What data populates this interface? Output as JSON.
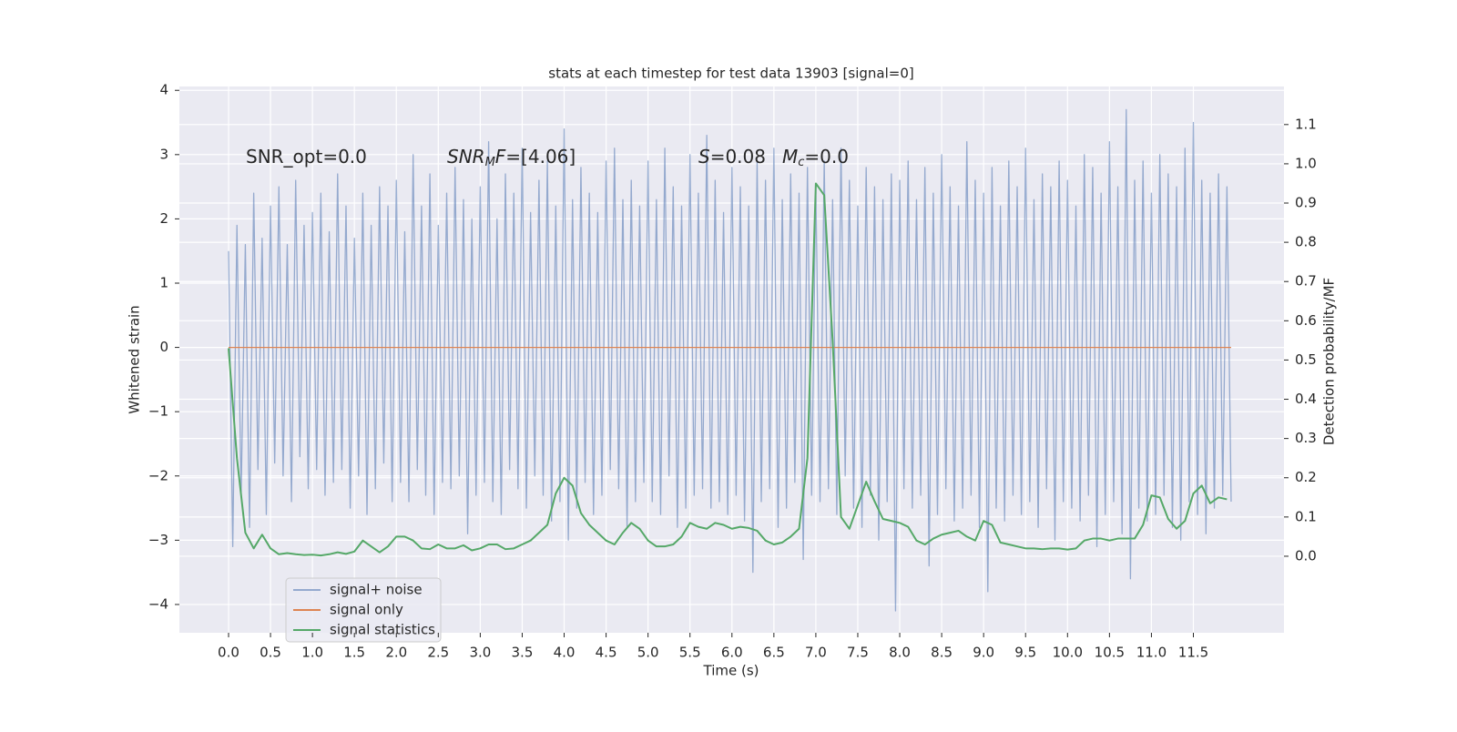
{
  "chart_data": {
    "type": "line",
    "title": "stats at each timestep for test data 13903 [signal=0]",
    "xlabel": "Time (s)",
    "ylabel": "Whitened strain",
    "y2label": "Detection probability/MF",
    "annotations": [
      [
        "SNR_opt=0.0"
      ],
      [
        "SNR",
        "M",
        "F",
        "=[4.06]"
      ],
      [
        "S",
        "=0.08"
      ],
      [
        "M",
        "c",
        "=0.0"
      ]
    ],
    "xlim": [
      -0.586,
      12.58
    ],
    "ylim": [
      -4.44,
      4.06
    ],
    "y2lim": [
      -0.195,
      1.197
    ],
    "xticks": [
      {
        "value": 0,
        "label": "0.0"
      },
      {
        "value": 0.5,
        "label": "0.5"
      },
      {
        "value": 1,
        "label": "1.0"
      },
      {
        "value": 1.5,
        "label": "1.5"
      },
      {
        "value": 2,
        "label": "2.0"
      },
      {
        "value": 2.5,
        "label": "2.5"
      },
      {
        "value": 3,
        "label": "3.0"
      },
      {
        "value": 3.5,
        "label": "3.5"
      },
      {
        "value": 4,
        "label": "4.0"
      },
      {
        "value": 4.5,
        "label": "4.5"
      },
      {
        "value": 5,
        "label": "5.0"
      },
      {
        "value": 5.5,
        "label": "5.5"
      },
      {
        "value": 6,
        "label": "6.0"
      },
      {
        "value": 6.5,
        "label": "6.5"
      },
      {
        "value": 7,
        "label": "7.0"
      },
      {
        "value": 7.5,
        "label": "7.5"
      },
      {
        "value": 8,
        "label": "8.0"
      },
      {
        "value": 8.5,
        "label": "8.5"
      },
      {
        "value": 9,
        "label": "9.0"
      },
      {
        "value": 9.5,
        "label": "9.5"
      },
      {
        "value": 10,
        "label": "10.0"
      },
      {
        "value": 10.5,
        "label": "10.5"
      },
      {
        "value": 11,
        "label": "11.0"
      },
      {
        "value": 11.5,
        "label": "11.5"
      }
    ],
    "yticks": [
      4,
      3,
      2,
      1,
      0,
      {
        "value": -1,
        "label": "−1"
      },
      {
        "value": -2,
        "label": "−2"
      },
      {
        "value": -3,
        "label": "−3"
      },
      {
        "value": -4,
        "label": "−4"
      }
    ],
    "y2ticks": [
      {
        "value": 0,
        "label": "0.0"
      },
      {
        "value": 0.1,
        "label": "0.1"
      },
      {
        "value": 0.2,
        "label": "0.2"
      },
      {
        "value": 0.3,
        "label": "0.3"
      },
      {
        "value": 0.4,
        "label": "0.4"
      },
      {
        "value": 0.5,
        "label": "0.5"
      },
      {
        "value": 0.6,
        "label": "0.6"
      },
      {
        "value": 0.7,
        "label": "0.7"
      },
      {
        "value": 0.8,
        "label": "0.8"
      },
      {
        "value": 0.9,
        "label": "0.9"
      },
      {
        "value": 1,
        "label": "1.0"
      },
      {
        "value": 1.1,
        "label": "1.1"
      }
    ],
    "grid": true,
    "legend": "lower left",
    "series": [
      {
        "name": "signal+ noise",
        "color": "#4c72b0",
        "alpha": 0.55,
        "x": [
          0,
          0.05,
          0.1,
          0.15,
          0.2,
          0.25,
          0.3,
          0.35,
          0.4,
          0.45,
          0.5,
          0.55,
          0.6,
          0.65,
          0.7,
          0.75,
          0.8,
          0.85,
          0.9,
          0.95,
          1,
          1.05,
          1.1,
          1.15,
          1.2,
          1.25,
          1.3,
          1.35,
          1.4,
          1.45,
          1.5,
          1.55,
          1.6,
          1.65,
          1.7,
          1.75,
          1.8,
          1.85,
          1.9,
          1.95,
          2,
          2.05,
          2.1,
          2.15,
          2.2,
          2.25,
          2.3,
          2.35,
          2.4,
          2.45,
          2.5,
          2.55,
          2.6,
          2.65,
          2.7,
          2.75,
          2.8,
          2.85,
          2.9,
          2.95,
          3,
          3.05,
          3.1,
          3.15,
          3.2,
          3.25,
          3.3,
          3.35,
          3.4,
          3.45,
          3.5,
          3.55,
          3.6,
          3.65,
          3.7,
          3.75,
          3.8,
          3.85,
          3.9,
          3.95,
          4,
          4.05,
          4.1,
          4.15,
          4.2,
          4.25,
          4.3,
          4.35,
          4.4,
          4.45,
          4.5,
          4.55,
          4.6,
          4.65,
          4.7,
          4.75,
          4.8,
          4.85,
          4.9,
          4.95,
          5,
          5.05,
          5.1,
          5.15,
          5.2,
          5.25,
          5.3,
          5.35,
          5.4,
          5.45,
          5.5,
          5.55,
          5.6,
          5.65,
          5.7,
          5.75,
          5.8,
          5.85,
          5.9,
          5.95,
          6,
          6.05,
          6.1,
          6.15,
          6.2,
          6.25,
          6.3,
          6.35,
          6.4,
          6.45,
          6.5,
          6.55,
          6.6,
          6.65,
          6.7,
          6.75,
          6.8,
          6.85,
          6.9,
          6.95,
          7,
          7.05,
          7.1,
          7.15,
          7.2,
          7.25,
          7.3,
          7.35,
          7.4,
          7.45,
          7.5,
          7.55,
          7.6,
          7.65,
          7.7,
          7.75,
          7.8,
          7.85,
          7.9,
          7.95,
          8,
          8.05,
          8.1,
          8.15,
          8.2,
          8.25,
          8.3,
          8.35,
          8.4,
          8.45,
          8.5,
          8.55,
          8.6,
          8.65,
          8.7,
          8.75,
          8.8,
          8.85,
          8.9,
          8.95,
          9,
          9.05,
          9.1,
          9.15,
          9.2,
          9.25,
          9.3,
          9.35,
          9.4,
          9.45,
          9.5,
          9.55,
          9.6,
          9.65,
          9.7,
          9.75,
          9.8,
          9.85,
          9.9,
          9.95,
          10,
          10.05,
          10.1,
          10.15,
          10.2,
          10.25,
          10.3,
          10.35,
          10.4,
          10.45,
          10.5,
          10.55,
          10.6,
          10.65,
          10.7,
          10.75,
          10.8,
          10.85,
          10.9,
          10.95,
          11,
          11.05,
          11.1,
          11.15,
          11.2,
          11.25,
          11.3,
          11.35,
          11.4,
          11.45,
          11.5,
          11.55,
          11.6,
          11.65,
          11.7,
          11.75,
          11.8,
          11.85,
          11.9,
          11.95
        ],
        "values": [
          1.5,
          -3.1,
          1.9,
          -2.3,
          1.6,
          -2.8,
          2.4,
          -1.9,
          1.7,
          -2.6,
          2.2,
          -1.8,
          2.5,
          -2.0,
          1.6,
          -2.4,
          2.6,
          -1.7,
          1.9,
          -2.2,
          2.1,
          -1.9,
          2.4,
          -2.3,
          1.8,
          -2.1,
          2.7,
          -1.9,
          2.2,
          -2.5,
          1.7,
          -2.0,
          2.4,
          -2.6,
          1.9,
          -2.2,
          2.5,
          -1.8,
          2.2,
          -2.4,
          2.6,
          -2.1,
          1.8,
          -2.4,
          3.0,
          -1.9,
          2.2,
          -2.3,
          2.7,
          -2.6,
          1.9,
          -2.1,
          2.4,
          -2.2,
          2.8,
          -2.0,
          2.3,
          -2.9,
          2.0,
          -2.3,
          2.5,
          -2.1,
          3.2,
          -2.4,
          2.0,
          -2.6,
          2.7,
          -1.9,
          2.4,
          -2.2,
          3.1,
          -2.5,
          2.1,
          -2.0,
          2.6,
          -2.3,
          2.9,
          -2.7,
          2.2,
          -2.4,
          3.4,
          -3.0,
          2.3,
          -2.5,
          2.8,
          -2.1,
          2.4,
          -2.6,
          2.1,
          -2.3,
          2.9,
          -1.9,
          3.1,
          -2.2,
          2.3,
          -2.8,
          2.6,
          -2.4,
          2.2,
          -2.1,
          2.9,
          -2.4,
          2.3,
          -2.6,
          3.1,
          -2.0,
          2.5,
          -2.8,
          2.2,
          -2.5,
          3.0,
          -2.3,
          2.4,
          -2.2,
          3.3,
          -2.5,
          2.6,
          -2.4,
          2.1,
          -2.6,
          2.8,
          -2.3,
          2.5,
          -2.7,
          2.2,
          -3.5,
          2.9,
          -2.4,
          2.6,
          -2.2,
          3.1,
          -2.8,
          2.3,
          -2.5,
          2.7,
          -2.1,
          2.4,
          -3.3,
          2.8,
          -2.3,
          2.5,
          -2.4,
          2.9,
          -2.2,
          2.3,
          -2.6,
          3.1,
          -2.0,
          2.6,
          -2.5,
          2.2,
          -2.8,
          2.8,
          -2.3,
          2.5,
          -3.0,
          2.3,
          -2.4,
          2.7,
          -4.1,
          2.6,
          -2.2,
          2.9,
          -2.5,
          2.3,
          -2.3,
          2.8,
          -3.4,
          2.4,
          -2.6,
          3.0,
          -2.2,
          2.5,
          -2.7,
          2.2,
          -2.5,
          3.2,
          -2.3,
          2.6,
          -2.8,
          2.4,
          -3.8,
          2.8,
          -2.5,
          2.2,
          -2.7,
          2.9,
          -2.3,
          2.5,
          -2.6,
          3.1,
          -2.4,
          2.3,
          -2.8,
          2.7,
          -2.2,
          2.5,
          -3.0,
          2.9,
          -2.4,
          2.6,
          -2.5,
          2.2,
          -2.7,
          3.0,
          -2.3,
          2.8,
          -3.1,
          2.4,
          -2.6,
          3.2,
          -2.4,
          2.5,
          -2.9,
          3.7,
          -3.6,
          2.6,
          -2.5,
          2.9,
          -2.7,
          2.4,
          -2.6,
          3.0,
          -2.3,
          2.7,
          -2.8,
          2.5,
          -3.0,
          3.1,
          -2.4,
          3.5,
          -2.6,
          2.6,
          -2.9,
          2.4,
          -2.5,
          2.7,
          -2.3,
          2.5,
          -2.4
        ]
      },
      {
        "name": "signal only",
        "color": "#dd8452",
        "x": [
          0,
          11.95
        ],
        "values": [
          0,
          0
        ]
      },
      {
        "name": "signal statistics",
        "color": "#55a868",
        "axis": "y2",
        "x": [
          0,
          0.1,
          0.2,
          0.3,
          0.4,
          0.5,
          0.6,
          0.7,
          0.8,
          0.9,
          1,
          1.1,
          1.2,
          1.3,
          1.4,
          1.5,
          1.6,
          1.7,
          1.8,
          1.9,
          2,
          2.1,
          2.2,
          2.3,
          2.4,
          2.5,
          2.6,
          2.7,
          2.8,
          2.9,
          3,
          3.1,
          3.2,
          3.3,
          3.4,
          3.5,
          3.6,
          3.7,
          3.8,
          3.9,
          4,
          4.1,
          4.2,
          4.3,
          4.4,
          4.5,
          4.6,
          4.7,
          4.8,
          4.9,
          5,
          5.1,
          5.2,
          5.3,
          5.4,
          5.5,
          5.6,
          5.7,
          5.8,
          5.9,
          6,
          6.1,
          6.2,
          6.3,
          6.4,
          6.5,
          6.6,
          6.7,
          6.8,
          6.9,
          7,
          7.1,
          7.2,
          7.3,
          7.4,
          7.5,
          7.6,
          7.7,
          7.8,
          7.9,
          8,
          8.1,
          8.2,
          8.3,
          8.4,
          8.5,
          8.6,
          8.7,
          8.8,
          8.9,
          9,
          9.1,
          9.2,
          9.3,
          9.4,
          9.5,
          9.6,
          9.7,
          9.8,
          9.9,
          10,
          10.1,
          10.2,
          10.3,
          10.4,
          10.5,
          10.6,
          10.7,
          10.8,
          10.9,
          11,
          11.1,
          11.2,
          11.3,
          11.4,
          11.5,
          11.6,
          11.7,
          11.8,
          11.9
        ],
        "values": [
          0.53,
          0.25,
          0.06,
          0.02,
          0.055,
          0.02,
          0.005,
          0.008,
          0.005,
          0.003,
          0.004,
          0.002,
          0.005,
          0.01,
          0.006,
          0.012,
          0.04,
          0.025,
          0.01,
          0.025,
          0.05,
          0.05,
          0.04,
          0.02,
          0.018,
          0.03,
          0.02,
          0.02,
          0.028,
          0.015,
          0.02,
          0.03,
          0.03,
          0.018,
          0.02,
          0.03,
          0.04,
          0.06,
          0.08,
          0.16,
          0.2,
          0.18,
          0.11,
          0.08,
          0.06,
          0.04,
          0.03,
          0.06,
          0.085,
          0.07,
          0.04,
          0.025,
          0.025,
          0.03,
          0.05,
          0.085,
          0.075,
          0.07,
          0.085,
          0.08,
          0.07,
          0.075,
          0.072,
          0.065,
          0.04,
          0.03,
          0.035,
          0.05,
          0.07,
          0.25,
          0.95,
          0.92,
          0.55,
          0.1,
          0.07,
          0.13,
          0.19,
          0.14,
          0.095,
          0.09,
          0.085,
          0.075,
          0.04,
          0.03,
          0.045,
          0.055,
          0.06,
          0.065,
          0.05,
          0.04,
          0.09,
          0.08,
          0.035,
          0.03,
          0.025,
          0.02,
          0.02,
          0.018,
          0.02,
          0.02,
          0.017,
          0.02,
          0.04,
          0.045,
          0.045,
          0.04,
          0.045,
          0.045,
          0.045,
          0.08,
          0.155,
          0.15,
          0.095,
          0.07,
          0.09,
          0.16,
          0.18,
          0.135,
          0.15,
          0.145
        ]
      }
    ]
  }
}
